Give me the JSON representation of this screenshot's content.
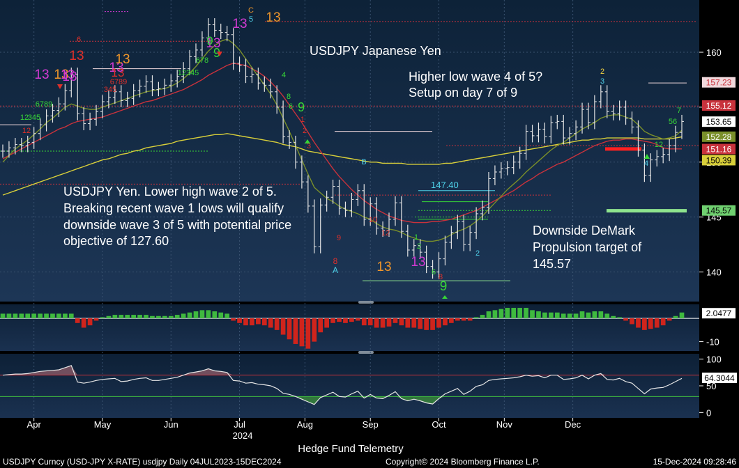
{
  "colors": {
    "bg_top": "#0d2238",
    "bg_bottom": "#1c3554",
    "price_line": "#e6e6e6",
    "ma_yellow": "#d8cf3a",
    "ma_red": "#c8323c",
    "ma_green": "#7a8f2a",
    "macd_pos": "#3fb93f",
    "macd_neg": "#d0241c",
    "rsi": "#e6e6e6",
    "rsi_upper": "#c8323c",
    "rsi_lower": "#3fb93f",
    "magenta": "#d23ad2",
    "orange": "#f0962a",
    "green_count": "#37d637",
    "red_count": "#e0302a",
    "cyan": "#4fd0e8"
  },
  "chart_data": [
    {
      "type": "line",
      "name": "price-panel",
      "yaxis_ticks": [
        140,
        145,
        150,
        155,
        160
      ],
      "ylim": [
        137.5,
        164.5
      ],
      "x_ticks": [
        "Apr",
        "May",
        "Jun",
        "Jul",
        "Aug",
        "Sep",
        "Oct",
        "Nov",
        "Dec"
      ],
      "x_year_label": "2024",
      "series": [
        {
          "values": [
            151.0,
            151.3,
            151.6,
            151.5,
            151.8,
            152.6,
            153.4,
            154.2,
            154.7,
            155.3,
            156.5,
            158.0,
            154.4,
            153.5,
            153.9,
            154.6,
            155.5,
            155.9,
            156.4,
            155.6,
            155.8,
            156.5,
            156.9,
            157.3,
            156.6,
            156.7,
            157.0,
            157.4,
            157.8,
            158.5,
            159.6,
            160.2,
            161.3,
            162.5,
            162.0,
            161.8,
            161.6,
            159.0,
            158.8,
            157.8,
            158.0,
            157.2,
            157.0,
            156.4,
            155.0,
            152.3,
            151.8,
            150.0,
            148.2,
            146.0,
            142.3,
            146.1,
            146.8,
            147.8,
            145.8,
            145.6,
            146.6,
            147.4,
            144.8,
            146.2,
            144.0,
            143.8,
            144.8,
            146.3,
            143.7,
            142.0,
            142.4,
            141.8,
            140.5,
            140.0,
            141.2,
            142.7,
            143.6,
            144.6,
            142.5,
            143.6,
            145.3,
            145.9,
            148.5,
            149.1,
            149.4,
            149.5,
            150.0,
            150.8,
            152.8,
            152.4,
            153.0,
            152.3,
            153.6,
            153.7,
            152.2,
            152.6,
            153.2,
            154.8,
            153.6,
            155.5,
            156.4,
            154.6,
            154.4,
            155.0,
            154.0,
            153.2,
            151.1,
            148.8,
            150.2,
            150.5,
            150.7,
            151.5,
            152.7,
            153.7
          ],
          "name": "USDJPY"
        },
        {
          "values": [
            147.0,
            147.2,
            147.4,
            147.6,
            147.8,
            148.0,
            148.2,
            148.4,
            148.6,
            148.8,
            149.0,
            149.2,
            149.4,
            149.6,
            149.8,
            150.0,
            150.2,
            150.3,
            150.5,
            150.7,
            150.8,
            151.0,
            151.1,
            151.3,
            151.4,
            151.5,
            151.6,
            151.7,
            151.9,
            152.0,
            152.1,
            152.2,
            152.3,
            152.4,
            152.5,
            152.5,
            152.6,
            152.5,
            152.4,
            152.3,
            152.2,
            152.1,
            152.0,
            151.9,
            151.8,
            151.6,
            151.5,
            151.4,
            151.2,
            151.0,
            150.9,
            150.8,
            150.7,
            150.6,
            150.5,
            150.4,
            150.3,
            150.2,
            150.1,
            150.0,
            150.0,
            149.9,
            149.9,
            149.9,
            149.9,
            149.8,
            149.8,
            149.8,
            149.8,
            149.8,
            149.8,
            149.9,
            149.9,
            150.0,
            150.1,
            150.2,
            150.3,
            150.4,
            150.5,
            150.6,
            150.7,
            150.8,
            150.9,
            151.0,
            151.1,
            151.2,
            151.3,
            151.4,
            151.5,
            151.6,
            151.7,
            151.8,
            151.9,
            152.0,
            152.0,
            152.1,
            152.1,
            152.2,
            152.2,
            152.2,
            152.2,
            152.2,
            152.2,
            152.1,
            152.1,
            152.1,
            152.1,
            152.1,
            152.2,
            152.3
          ],
          "name": "MA-yellow"
        },
        {
          "values": [
            150.3,
            150.6,
            150.9,
            151.2,
            151.5,
            151.8,
            152.1,
            152.4,
            152.7,
            153.0,
            153.2,
            153.5,
            153.7,
            153.8,
            153.9,
            154.0,
            154.1,
            154.3,
            154.5,
            154.7,
            154.9,
            155.1,
            155.3,
            155.5,
            155.6,
            155.8,
            156.0,
            156.2,
            156.4,
            156.6,
            156.9,
            157.2,
            157.5,
            157.9,
            158.2,
            158.5,
            158.8,
            159.0,
            158.9,
            158.8,
            158.5,
            158.2,
            157.8,
            157.3,
            156.7,
            156.0,
            155.2,
            154.4,
            153.6,
            152.7,
            151.8,
            151.0,
            150.2,
            149.4,
            148.7,
            148.1,
            147.5,
            147.0,
            146.5,
            146.1,
            145.7,
            145.4,
            145.1,
            144.9,
            144.7,
            144.6,
            144.5,
            144.5,
            144.5,
            144.6,
            144.6,
            144.7,
            144.8,
            145.0,
            145.2,
            145.4,
            145.6,
            145.9,
            146.2,
            146.5,
            146.8,
            147.1,
            147.4,
            147.8,
            148.2,
            148.5,
            148.9,
            149.2,
            149.5,
            149.8,
            150.0,
            150.3,
            150.6,
            150.9,
            151.2,
            151.5,
            151.7,
            151.9,
            152.0,
            152.0,
            152.1,
            152.1,
            152.0,
            151.9,
            151.8,
            151.6,
            151.3,
            151.2,
            151.2,
            151.2
          ],
          "name": "MA-red"
        },
        {
          "values": [
            150.0,
            150.6,
            151.2,
            151.6,
            152.0,
            152.5,
            153.0,
            153.6,
            154.0,
            154.5,
            155.0,
            155.3,
            155.1,
            154.9,
            154.8,
            154.8,
            155.0,
            155.2,
            155.4,
            155.6,
            155.8,
            156.0,
            156.2,
            156.4,
            156.5,
            156.6,
            156.7,
            156.9,
            157.2,
            157.6,
            158.1,
            158.7,
            159.4,
            160.1,
            160.6,
            161.0,
            161.2,
            160.8,
            160.2,
            159.4,
            158.6,
            157.8,
            157.0,
            156.2,
            155.2,
            154.0,
            152.8,
            151.5,
            150.2,
            148.9,
            147.7,
            147.2,
            146.7,
            146.4,
            146.0,
            145.7,
            145.5,
            145.3,
            145.0,
            144.8,
            144.4,
            144.1,
            143.9,
            143.8,
            143.6,
            143.3,
            143.1,
            142.9,
            142.8,
            142.8,
            142.9,
            143.1,
            143.4,
            143.7,
            143.9,
            144.2,
            144.6,
            145.1,
            145.7,
            146.3,
            146.9,
            147.5,
            148.0,
            148.5,
            149.1,
            149.6,
            150.1,
            150.6,
            151.1,
            151.5,
            151.8,
            152.2,
            152.6,
            153.0,
            153.3,
            153.6,
            154.0,
            154.2,
            154.3,
            154.3,
            154.1,
            153.9,
            153.4,
            152.8,
            152.5,
            152.3,
            152.1,
            152.2,
            152.4,
            152.9
          ],
          "name": "MA-green"
        }
      ],
      "levels": [
        {
          "label": "145.57",
          "value": 145.57,
          "color": "#8ee48e"
        },
        {
          "label": "147.40",
          "value": 147.4,
          "color": "#4fd0e8"
        }
      ]
    },
    {
      "type": "bar",
      "name": "macd-panel",
      "yaxis_ticks": [
        "-10"
      ],
      "ylim": [
        -14,
        6
      ],
      "values": [
        2,
        2,
        2,
        2,
        2,
        2,
        2,
        2,
        2,
        2,
        2,
        2,
        -2,
        -4,
        -3,
        -1,
        0.5,
        1,
        1.5,
        1.5,
        1.5,
        1.5,
        1.5,
        1.5,
        1,
        1,
        1,
        1,
        1.5,
        2,
        2.5,
        3,
        3.5,
        3.5,
        3,
        2.5,
        2,
        -1,
        -2,
        -3,
        -3,
        -2.5,
        -3,
        -4,
        -5,
        -7,
        -9,
        -11,
        -12,
        -13,
        -10,
        -6,
        -4,
        -2,
        -1.5,
        -2,
        -1.5,
        -1,
        -3,
        -3,
        -4,
        -4,
        -3.5,
        -2,
        -3,
        -4,
        -4,
        -4.5,
        -5,
        -5,
        -4,
        -3,
        -2,
        -1,
        -1,
        -1,
        0.5,
        1.5,
        3,
        3.5,
        4,
        4.5,
        4.5,
        4.5,
        4.5,
        3.5,
        3,
        2.5,
        2.5,
        2.5,
        2,
        2,
        2,
        3,
        2.5,
        3,
        3,
        2,
        1,
        0.5,
        -1,
        -2.5,
        -4,
        -5,
        -4.5,
        -4,
        -3,
        -1,
        1,
        2.5
      ],
      "last_label": "2.0477"
    },
    {
      "type": "line",
      "name": "rsi-panel",
      "yaxis_ticks": [
        0,
        50,
        100
      ],
      "ylim": [
        -10,
        110
      ],
      "values": [
        70,
        71,
        72,
        72,
        73,
        75,
        77,
        78,
        79,
        80,
        84,
        88,
        57,
        55,
        57,
        60,
        62,
        63,
        64,
        58,
        59,
        62,
        64,
        65,
        60,
        60,
        62,
        64,
        66,
        70,
        74,
        76,
        78,
        82,
        78,
        77,
        75,
        60,
        59,
        55,
        56,
        53,
        52,
        50,
        45,
        36,
        34,
        30,
        25,
        20,
        15,
        28,
        33,
        38,
        30,
        29,
        35,
        40,
        27,
        34,
        27,
        26,
        32,
        39,
        26,
        22,
        25,
        22,
        18,
        16,
        26,
        35,
        40,
        45,
        34,
        40,
        49,
        52,
        60,
        62,
        63,
        64,
        65,
        67,
        70,
        68,
        69,
        65,
        70,
        70,
        62,
        63,
        65,
        70,
        63,
        70,
        73,
        62,
        61,
        64,
        58,
        55,
        45,
        35,
        44,
        46,
        47,
        52,
        58,
        64
      ],
      "upper": 70,
      "lower": 30,
      "last_label": "64.3044"
    }
  ],
  "right_labels": [
    {
      "text": "157.23",
      "value": 157.23,
      "bg": "#f0d8dc",
      "fg": "#c8323c"
    },
    {
      "text": "155.12",
      "value": 155.12,
      "bg": "#c8323c",
      "fg": "#ffffff"
    },
    {
      "text": "153.65",
      "value": 153.65,
      "bg": "#ffffff",
      "fg": "#000000"
    },
    {
      "text": "152.28",
      "value": 152.28,
      "bg": "#7a8f2a",
      "fg": "#ffffff"
    },
    {
      "text": "151.16",
      "value": 151.16,
      "bg": "#c8323c",
      "fg": "#ffffff"
    },
    {
      "text": "150.39",
      "value": 150.39,
      "bg": "#d8cf3a",
      "fg": "#000000"
    },
    {
      "text": "145.57",
      "value": 145.57,
      "bg": "#6fcf6f",
      "fg": "#000000"
    }
  ],
  "annotations": {
    "title": "USDJPY Japanese Yen",
    "wave4_line1": "Higher low wave 4 of 5?",
    "wave4_line2": "Setup on day 7 of 9",
    "left_line1": "USDJPY Yen.  Lower high wave 2 of 5.",
    "left_line2": "Breaking recent wave 1 lows will qualify",
    "left_line3": "downside wave 3 of 5 with potential price",
    "left_line4": "objective of 127.60",
    "target_line1": "Downside DeMark",
    "target_line2": "Propulsion target of",
    "target_line3": "145.57"
  },
  "footer": {
    "source": "Hedge Fund Telemetry",
    "left": "USDJPY Curncy (USD-JPY X-RATE) usdjpy  Daily 04JUL2023-15DEC2024",
    "center": "Copyright© 2024 Bloomberg Finance L.P.",
    "right": "15-Dec-2024 09:28:46"
  },
  "demark_counts": [
    {
      "text": "13",
      "color": "#d23ad2"
    },
    {
      "text": "13",
      "color": "#f0962a"
    },
    {
      "text": "13",
      "color": "#d23ad2"
    },
    {
      "text": "13",
      "color": "#e0302a"
    },
    {
      "text": "13",
      "color": "#d23ad2"
    },
    {
      "text": "13",
      "color": "#f0962a"
    },
    {
      "text": "13",
      "color": "#d23ad2"
    },
    {
      "text": "13",
      "color": "#d23ad2"
    },
    {
      "text": "13",
      "color": "#f0962a"
    },
    {
      "text": "13",
      "color": "#d23ad2"
    },
    {
      "text": "13",
      "color": "#f0962a"
    },
    {
      "text": "13",
      "color": "#e0302a"
    },
    {
      "text": "13",
      "color": "#d23ad2"
    },
    {
      "text": "9",
      "color": "#37d637"
    },
    {
      "text": "9",
      "color": "#37d637"
    },
    {
      "text": "9",
      "color": "#37d637"
    },
    {
      "text": "9",
      "color": "#37d637"
    },
    {
      "text": "8",
      "color": "#e0302a"
    },
    {
      "text": "A",
      "color": "#4fd0e8"
    },
    {
      "text": "B",
      "color": "#4fd0e8"
    },
    {
      "text": "C",
      "color": "#f0962a"
    },
    {
      "text": "5",
      "color": "#4fd0e8"
    },
    {
      "text": "2",
      "color": "#f0d040"
    },
    {
      "text": "3",
      "color": "#4fd0e8"
    },
    {
      "text": "4",
      "color": "#4fd0e8"
    },
    {
      "text": "2",
      "color": "#4fd0e8"
    },
    {
      "text": "7",
      "color": "#37d637"
    },
    {
      "text": "56",
      "color": "#37d637"
    },
    {
      "text": "12",
      "color": "#37d637"
    },
    {
      "text": "6",
      "color": "#e0302a"
    },
    {
      "text": "9",
      "color": "#e0302a"
    },
    {
      "text": "8",
      "color": "#e0302a"
    },
    {
      "text": "12",
      "color": "#e0302a"
    },
    {
      "text": "10",
      "color": "#e0302a"
    },
    {
      "text": "1",
      "color": "#37d637"
    },
    {
      "text": "2",
      "color": "#37d637"
    },
    {
      "text": "6",
      "color": "#37d637"
    },
    {
      "text": "8",
      "color": "#37d637"
    },
    {
      "text": "4",
      "color": "#37d637"
    },
    {
      "text": "6",
      "color": "#37d637"
    },
    {
      "text": "3",
      "color": "#e0302a"
    },
    {
      "text": "2",
      "color": "#e0302a"
    },
    {
      "text": "1",
      "color": "#e0302a"
    },
    {
      "text": "12",
      "color": "#e0302a"
    },
    {
      "text": "345",
      "color": "#37d637"
    },
    {
      "text": "6789",
      "color": "#37d637"
    },
    {
      "text": "12",
      "color": "#37d637"
    },
    {
      "text": "12345",
      "color": "#37d637"
    },
    {
      "text": "678",
      "color": "#37d637"
    },
    {
      "text": "345",
      "color": "#e0302a"
    },
    {
      "text": "6789",
      "color": "#e0302a"
    }
  ]
}
